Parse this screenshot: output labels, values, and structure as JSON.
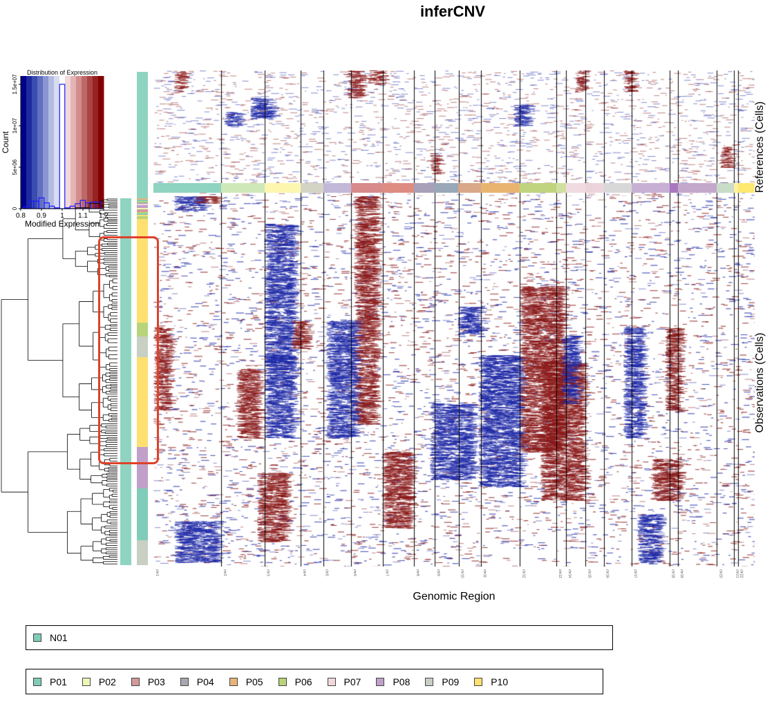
{
  "title": "inferCNV",
  "colors": {
    "gain": "#8b1a1a",
    "loss": "#1f2aa8",
    "reference_bar": "#8fd4c0",
    "highlight_box": "#e0402a"
  },
  "chart_data": {
    "type": "heatmap",
    "title": "inferCNV",
    "xlabel": "Genomic Region",
    "ylabel_references": "References (Cells)",
    "ylabel_observations": "Observations (Cells)",
    "chromosomes": [
      {
        "name": "chr1",
        "weight": 97,
        "color": "#8fd4c0"
      },
      {
        "name": "chr2",
        "weight": 62,
        "color": "#cfe8b8"
      },
      {
        "name": "chr3",
        "weight": 52,
        "color": "#fdf6b0"
      },
      {
        "name": "chr4",
        "weight": 32,
        "color": "#d4d4c4"
      },
      {
        "name": "chr5",
        "weight": 40,
        "color": "#c2b8d8"
      },
      {
        "name": "chr6",
        "weight": 46,
        "color": "#d88a8a"
      },
      {
        "name": "chr7",
        "weight": 44,
        "color": "#de8c82"
      },
      {
        "name": "chr8",
        "weight": 30,
        "color": "#a8a0b8"
      },
      {
        "name": "chr9",
        "weight": 34,
        "color": "#98a8b8"
      },
      {
        "name": "chr10",
        "weight": 32,
        "color": "#d8a888"
      },
      {
        "name": "chr11",
        "weight": 56,
        "color": "#e8b470"
      },
      {
        "name": "chr12",
        "weight": 52,
        "color": "#c0d480"
      },
      {
        "name": "chr13",
        "weight": 14,
        "color": "#d0e0a0"
      },
      {
        "name": "chr14",
        "weight": 28,
        "color": "#f0dce0"
      },
      {
        "name": "chr15",
        "weight": 26,
        "color": "#ecd4dc"
      },
      {
        "name": "chr16",
        "weight": 40,
        "color": "#d8d8d8"
      },
      {
        "name": "chr17",
        "weight": 54,
        "color": "#c8b0d4"
      },
      {
        "name": "chr18",
        "weight": 12,
        "color": "#a878c0"
      },
      {
        "name": "chr19",
        "weight": 56,
        "color": "#c4a8cc"
      },
      {
        "name": "chr20",
        "weight": 24,
        "color": "#c8dcc8"
      },
      {
        "name": "chr21",
        "weight": 6,
        "color": "#fdf0a0"
      },
      {
        "name": "chr22",
        "weight": 24,
        "color": "#fde870"
      }
    ],
    "annotation_groups": [
      "P01",
      "P02",
      "P03",
      "P04",
      "P05",
      "P06",
      "P07",
      "P08",
      "P09",
      "P10"
    ],
    "histogram": {
      "title": "Distribution of Expression",
      "xlabel": "Modified Expression",
      "ylabel": "Count",
      "x_ticks": [
        "0.8",
        "0.9",
        "1",
        "1.1",
        "1.2"
      ],
      "y_ticks": [
        "0",
        "5e+06",
        "1e+07",
        "1.5e+07"
      ],
      "xlim": [
        0.8,
        1.2
      ],
      "ylim": [
        0,
        16000000
      ],
      "bins_x": [
        0.825,
        0.85,
        0.875,
        0.9,
        0.925,
        0.95,
        0.975,
        1.0,
        1.025,
        1.05,
        1.075,
        1.1,
        1.125,
        1.15,
        1.175
      ],
      "bins_y": [
        200000,
        900000,
        900000,
        1300000,
        700000,
        300000,
        100000,
        15000000,
        100000,
        300000,
        600000,
        1000000,
        700000,
        800000,
        800000
      ],
      "color_bands": [
        "#00008b",
        "#1c2a9c",
        "#3a4caf",
        "#6070c0",
        "#8a95d2",
        "#b4bce2",
        "#d8dcf0",
        "#ffffff",
        "#f2d8d8",
        "#e4b4b4",
        "#d28e8e",
        "#be6868",
        "#aa4444",
        "#962222",
        "#840000"
      ]
    }
  },
  "legend_references": {
    "items": [
      {
        "label": "N01",
        "color": "#7fcdb8"
      }
    ]
  },
  "legend_observations": {
    "items": [
      {
        "label": "P01",
        "color": "#7fcdb8"
      },
      {
        "label": "P02",
        "color": "#eef7b8"
      },
      {
        "label": "P03",
        "color": "#d49a9a"
      },
      {
        "label": "P04",
        "color": "#a8a8b0"
      },
      {
        "label": "P05",
        "color": "#e8b47a"
      },
      {
        "label": "P06",
        "color": "#b8d47a"
      },
      {
        "label": "P07",
        "color": "#f2d8dc"
      },
      {
        "label": "P08",
        "color": "#c0a0c8"
      },
      {
        "label": "P09",
        "color": "#c8d0c4"
      },
      {
        "label": "P10",
        "color": "#fde070"
      }
    ]
  }
}
